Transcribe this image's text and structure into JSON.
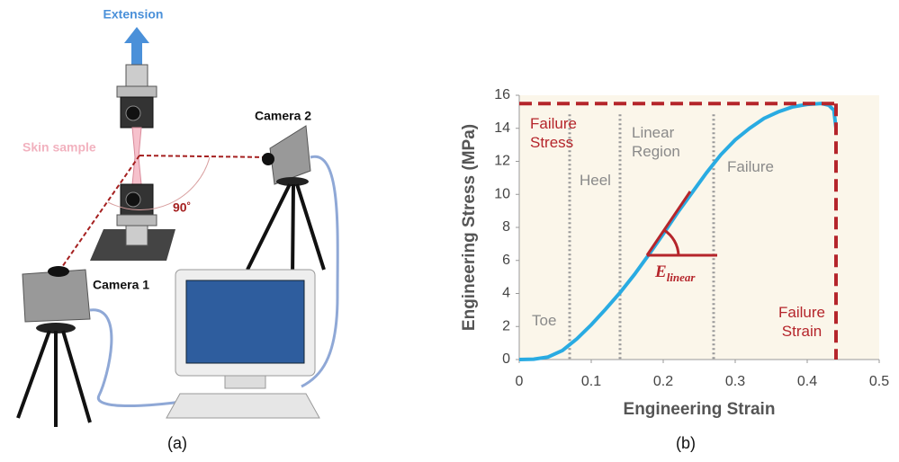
{
  "diagram": {
    "extension": "Extension",
    "skin_sample": "Skin sample",
    "camera_2": "Camera 2",
    "camera_1": "Camera 1",
    "angle": "90˚"
  },
  "captions": [
    "(a)",
    "(b)"
  ],
  "chart_data": {
    "type": "line",
    "x_label": "Engineering Strain",
    "y_label": "Engineering Stress (MPa)",
    "x": [
      0,
      0.02,
      0.04,
      0.06,
      0.08,
      0.1,
      0.12,
      0.14,
      0.16,
      0.18,
      0.2,
      0.22,
      0.24,
      0.26,
      0.28,
      0.3,
      0.32,
      0.34,
      0.36,
      0.38,
      0.4,
      0.42,
      0.43,
      0.437,
      0.44
    ],
    "values": [
      0,
      0.02,
      0.15,
      0.55,
      1.25,
      2.1,
      3.05,
      4.05,
      5.15,
      6.35,
      7.6,
      8.9,
      10.1,
      11.3,
      12.4,
      13.3,
      14.0,
      14.6,
      15.0,
      15.3,
      15.45,
      15.5,
      15.4,
      15.1,
      14.0
    ],
    "color": "#29abe2",
    "xlim": [
      0,
      0.5
    ],
    "xticks": [
      0,
      0.1,
      0.2,
      0.3,
      0.4,
      0.5
    ],
    "ylim": [
      0,
      16
    ],
    "yticks": [
      0,
      2,
      4,
      6,
      8,
      10,
      12,
      14,
      16
    ],
    "background": "#fbf6ea",
    "failure_stress": {
      "label": "Failure Stress",
      "value": 15.5
    },
    "failure_strain": {
      "label": "Failure Strain",
      "value": 0.44
    },
    "reference_color": "#b5252b",
    "regions": {
      "boundaries": [
        0.07,
        0.14,
        0.27
      ],
      "labels": [
        "Toe",
        "Heel",
        "Linear Region",
        "Failure"
      ]
    },
    "modulus_label": {
      "symbol": "E",
      "subscript": "linear"
    }
  }
}
